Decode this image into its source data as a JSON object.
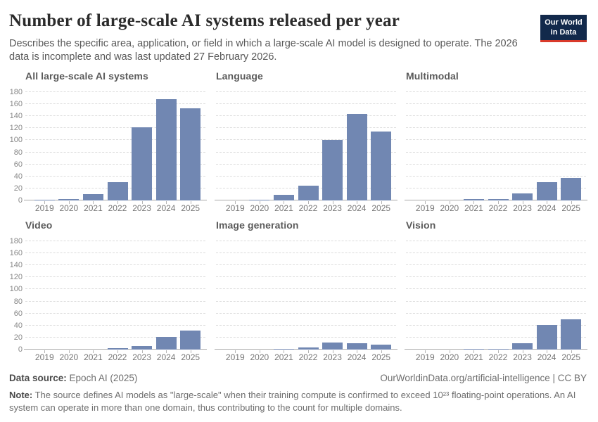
{
  "header": {
    "title": "Number of large-scale AI systems released per year",
    "subtitle": "Describes the specific area, application, or field in which a large-scale AI model is designed to operate. The 2026 data is incomplete and was last updated 27 February 2026.",
    "logo": {
      "line1": "Our World",
      "line2": "in Data",
      "bg_color": "#12294b",
      "stripe_color": "#d93a2b"
    }
  },
  "chart_data": {
    "type": "bar",
    "layout": "small-multiples 3x2",
    "categories": [
      "2019",
      "2020",
      "2021",
      "2022",
      "2023",
      "2024",
      "2025"
    ],
    "facets": [
      {
        "title": "All large-scale AI systems",
        "values": [
          1,
          2,
          10,
          30,
          121,
          168,
          153
        ]
      },
      {
        "title": "Language",
        "values": [
          0,
          1,
          9,
          24,
          101,
          144,
          115
        ]
      },
      {
        "title": "Multimodal",
        "values": [
          0,
          0,
          2,
          2,
          12,
          30,
          37
        ]
      },
      {
        "title": "Video",
        "values": [
          0,
          0,
          0,
          2,
          6,
          21,
          32
        ]
      },
      {
        "title": "Image generation",
        "values": [
          0,
          0,
          1,
          3,
          12,
          10,
          8
        ]
      },
      {
        "title": "Vision",
        "values": [
          0,
          0,
          1,
          1,
          11,
          41,
          50
        ]
      }
    ],
    "ylim": [
      0,
      180
    ],
    "yticks": [
      0,
      20,
      40,
      60,
      80,
      100,
      120,
      140,
      160,
      180
    ],
    "y_labels_only_on_first_column": true,
    "grid": "horizontal dashed",
    "bar_color": "#7187b2",
    "xlabel": "",
    "ylabel": ""
  },
  "footer": {
    "source_label": "Data source:",
    "source_value": "Epoch AI (2025)",
    "attribution": "OurWorldinData.org/artificial-intelligence | CC BY",
    "note_label": "Note:",
    "note_text": "The source defines AI models as \"large-scale\" when their training compute is confirmed to exceed 10²³ floating-point operations. An AI system can operate in more than one domain, thus contributing to the count for multiple domains."
  }
}
